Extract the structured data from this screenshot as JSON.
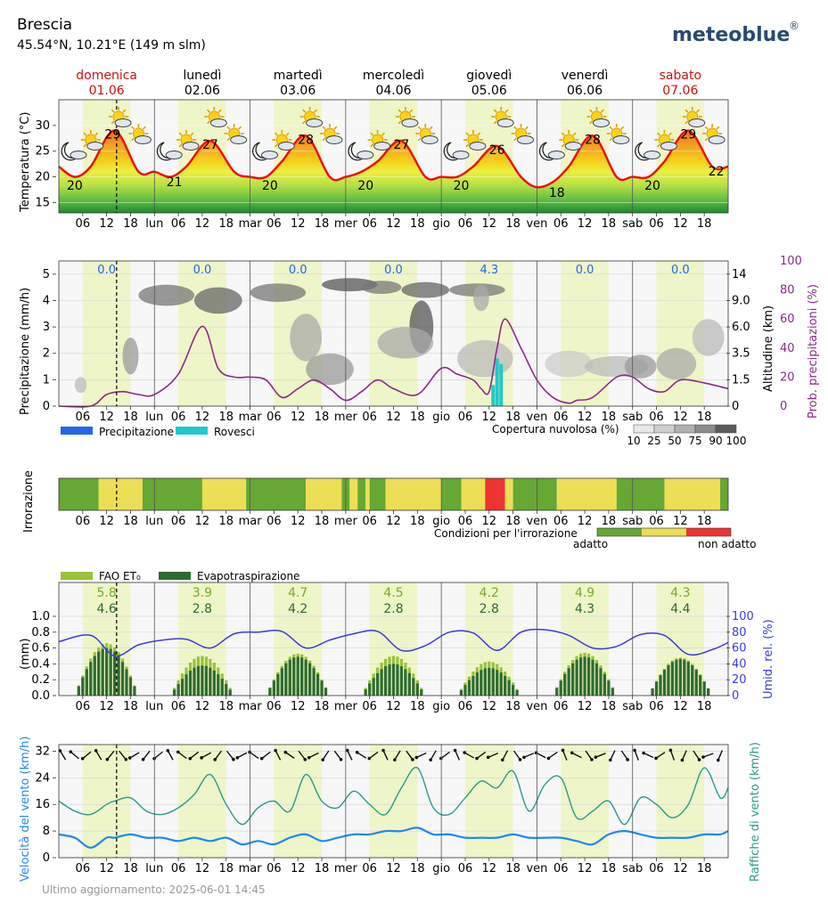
{
  "header": {
    "city": "Brescia",
    "coords": "45.54°N, 10.21°E (149 m slm)",
    "brand": "meteoblue",
    "brand_mark": "®"
  },
  "days": [
    {
      "name": "domenica",
      "date": "01.06",
      "weekend": true
    },
    {
      "name": "lunedì",
      "date": "02.06",
      "weekend": false
    },
    {
      "name": "martedì",
      "date": "03.06",
      "weekend": false
    },
    {
      "name": "mercoledì",
      "date": "04.06",
      "weekend": false
    },
    {
      "name": "giovedì",
      "date": "05.06",
      "weekend": false
    },
    {
      "name": "venerdì",
      "date": "06.06",
      "weekend": false
    },
    {
      "name": "sabato",
      "date": "07.06",
      "weekend": true
    }
  ],
  "x_ticks": [
    "06",
    "12",
    "18",
    "lun",
    "06",
    "12",
    "18",
    "mar",
    "06",
    "12",
    "18",
    "mer",
    "06",
    "12",
    "18",
    "gio",
    "06",
    "12",
    "18",
    "ven",
    "06",
    "12",
    "18",
    "sab",
    "06",
    "12",
    "18"
  ],
  "chart_data": [
    {
      "type": "line",
      "id": "temperature",
      "ylabel": "Temperatura (°C)",
      "y_ticks": [
        15,
        20,
        25,
        30
      ],
      "ylim": [
        13,
        35
      ],
      "x_hours": [
        0,
        4,
        8,
        14,
        20,
        24,
        28,
        32,
        38,
        44,
        48,
        52,
        56,
        62,
        68,
        72,
        76,
        80,
        86,
        92,
        96,
        100,
        104,
        110,
        116,
        120,
        124,
        128,
        134,
        140,
        144,
        148,
        152,
        158,
        164,
        168
      ],
      "values": [
        22,
        20,
        22,
        29,
        21,
        21,
        20,
        22,
        27,
        21,
        20,
        20,
        23,
        28,
        20,
        20,
        21,
        23,
        27,
        20,
        20,
        20,
        22,
        26,
        20,
        18,
        19,
        22,
        28,
        20,
        20,
        20,
        23,
        29,
        22,
        22
      ],
      "max_labels": [
        29,
        27,
        28,
        27,
        26,
        28,
        29
      ],
      "min_labels": [
        20,
        21,
        20,
        20,
        20,
        18,
        20,
        22
      ]
    },
    {
      "type": "line",
      "id": "precipitation",
      "ylabel": "Precipitazione (mm/h)",
      "y_ticks": [
        0,
        1,
        2,
        3,
        4,
        5
      ],
      "ylim": [
        0,
        5.5
      ],
      "right_axis_1": {
        "label": "Altitudine (km)",
        "ticks": [
          "0",
          "1.5",
          "3.5",
          "6.0",
          "9.0",
          "14"
        ]
      },
      "right_axis_2": {
        "label": "Prob. precipitazioni (%)",
        "ticks": [
          0,
          20,
          40,
          60,
          80,
          100
        ]
      },
      "daily_totals": [
        "0.0",
        "0.0",
        "0.0",
        "0.0",
        "4.3",
        "0.0",
        "0.0"
      ],
      "prob_x_hours": [
        0,
        8,
        12,
        16,
        20,
        24,
        30,
        36,
        40,
        44,
        48,
        52,
        56,
        60,
        64,
        68,
        72,
        76,
        80,
        84,
        90,
        96,
        100,
        104,
        106,
        108,
        110,
        112,
        116,
        120,
        124,
        128,
        130,
        134,
        140,
        144,
        148,
        152,
        156,
        162,
        168
      ],
      "prob_values": [
        0,
        0,
        8,
        10,
        8,
        8,
        22,
        55,
        26,
        20,
        20,
        18,
        6,
        12,
        18,
        12,
        4,
        10,
        18,
        12,
        8,
        26,
        22,
        18,
        12,
        10,
        40,
        60,
        40,
        18,
        6,
        2,
        4,
        6,
        20,
        20,
        12,
        10,
        18,
        16,
        12
      ],
      "showers": [
        {
          "hour": 109,
          "mm": 0.8
        },
        {
          "hour": 110,
          "mm": 1.8
        },
        {
          "hour": 111,
          "mm": 1.6
        }
      ],
      "legend": {
        "precip": "Precipitazione",
        "showers": "Rovesci",
        "cloud_title": "Copertura nuvolosa (%)",
        "cloud_ticks": [
          "10",
          "25",
          "50",
          "75",
          "90",
          "100"
        ]
      }
    },
    {
      "type": "heatmap",
      "id": "irrigation",
      "ylabel": "Irrorazione",
      "legend_title": "Condizioni per l'irrorazione",
      "legend_good": "adatto",
      "legend_bad": "non adatto",
      "segments": [
        {
          "from": 0,
          "to": 10,
          "level": "good"
        },
        {
          "from": 10,
          "to": 21,
          "level": "medium"
        },
        {
          "from": 21,
          "to": 36,
          "level": "good"
        },
        {
          "from": 36,
          "to": 47,
          "level": "medium"
        },
        {
          "from": 47,
          "to": 62,
          "level": "good"
        },
        {
          "from": 62,
          "to": 71,
          "level": "medium"
        },
        {
          "from": 71,
          "to": 73,
          "level": "good"
        },
        {
          "from": 73,
          "to": 75,
          "level": "medium"
        },
        {
          "from": 75,
          "to": 77,
          "level": "good"
        },
        {
          "from": 77,
          "to": 78,
          "level": "medium"
        },
        {
          "from": 78,
          "to": 82,
          "level": "good"
        },
        {
          "from": 82,
          "to": 96,
          "level": "medium"
        },
        {
          "from": 96,
          "to": 101,
          "level": "good"
        },
        {
          "from": 101,
          "to": 107,
          "level": "medium"
        },
        {
          "from": 107,
          "to": 112,
          "level": "bad"
        },
        {
          "from": 112,
          "to": 114,
          "level": "medium"
        },
        {
          "from": 114,
          "to": 125,
          "level": "good"
        },
        {
          "from": 125,
          "to": 140,
          "level": "medium"
        },
        {
          "from": 140,
          "to": 152,
          "level": "good"
        },
        {
          "from": 152,
          "to": 166,
          "level": "medium"
        },
        {
          "from": 166,
          "to": 168,
          "level": "good"
        }
      ]
    },
    {
      "type": "bar",
      "id": "evapotranspiration",
      "ylabel": "(mm)",
      "y_ticks": [
        "0.0",
        "0.2",
        "0.4",
        "0.6",
        "0.8",
        "1.0"
      ],
      "ylim": [
        0,
        1.0
      ],
      "right_axis": {
        "label": "Umid. rel. (%)",
        "ticks": [
          0,
          20,
          40,
          60,
          80,
          100
        ]
      },
      "legend": {
        "fao": "FAO ET₀",
        "evapo": "Evapotraspirazione"
      },
      "fao_daily": [
        "5.8",
        "3.9",
        "4.7",
        "4.5",
        "4.2",
        "4.9",
        "4.3"
      ],
      "evapo_daily": [
        "4.6",
        "2.8",
        "4.2",
        "2.8",
        "2.8",
        "4.3",
        "4.4"
      ],
      "fao_peak": [
        0.66,
        0.5,
        0.53,
        0.5,
        0.43,
        0.54,
        0.48
      ],
      "evapo_peak": [
        0.6,
        0.38,
        0.49,
        0.4,
        0.35,
        0.49,
        0.46
      ],
      "humidity_x_hours": [
        0,
        8,
        14,
        20,
        26,
        32,
        38,
        44,
        50,
        56,
        62,
        68,
        74,
        80,
        86,
        92,
        98,
        104,
        110,
        116,
        122,
        128,
        134,
        140,
        146,
        152,
        158,
        164,
        168
      ],
      "humidity_values": [
        68,
        76,
        50,
        64,
        70,
        71,
        60,
        78,
        80,
        81,
        60,
        70,
        78,
        81,
        57,
        63,
        80,
        79,
        57,
        80,
        83,
        76,
        60,
        62,
        77,
        76,
        52,
        58,
        67
      ]
    },
    {
      "type": "line",
      "id": "wind",
      "ylabel_left": "Velocità del vento (km/h)",
      "ylabel_right": "Raffiche di vento (km/h)",
      "y_ticks": [
        0,
        8,
        16,
        24,
        32
      ],
      "ylim": [
        0,
        34
      ],
      "x_hours": [
        0,
        4,
        8,
        12,
        14,
        18,
        22,
        26,
        30,
        34,
        38,
        42,
        46,
        50,
        54,
        58,
        62,
        66,
        70,
        74,
        78,
        82,
        86,
        90,
        94,
        98,
        102,
        106,
        110,
        114,
        118,
        122,
        126,
        130,
        134,
        138,
        142,
        146,
        150,
        154,
        158,
        162,
        166,
        168
      ],
      "speed": [
        7,
        6,
        3,
        6,
        6,
        7,
        6,
        6,
        5,
        6,
        5,
        6,
        4,
        5,
        4,
        6,
        7,
        5,
        6,
        7,
        7,
        8,
        8,
        9,
        7,
        7,
        6,
        6,
        6,
        7,
        6,
        6,
        6,
        5,
        4,
        7,
        8,
        7,
        6,
        6,
        6,
        7,
        7,
        8
      ],
      "gusts": [
        17,
        14,
        13,
        16,
        17,
        18,
        14,
        13,
        15,
        19,
        25,
        16,
        10,
        15,
        17,
        14,
        25,
        17,
        15,
        20,
        16,
        13,
        21,
        27,
        15,
        13,
        18,
        23,
        21,
        26,
        14,
        22,
        24,
        12,
        14,
        17,
        10,
        18,
        16,
        12,
        16,
        27,
        18,
        21
      ]
    }
  ],
  "updated": "Ultimo aggiornamento: 2025-06-01 14:45",
  "colors": {
    "day_band": "#eef5c8",
    "temp_line": "#ee1111",
    "humidity": "#3b3bdd",
    "prob": "#8a2a8a",
    "showers": "#22c9c9",
    "precip": "#2266ee",
    "wind_speed": "#2288ee",
    "gusts": "#2a9a8e",
    "fao": "#99c23a",
    "evapo": "#2e6b32",
    "irr_good": "#66a833",
    "irr_medium": "#ecdf55",
    "irr_bad": "#ee3333",
    "weekend": "#cc1111"
  }
}
